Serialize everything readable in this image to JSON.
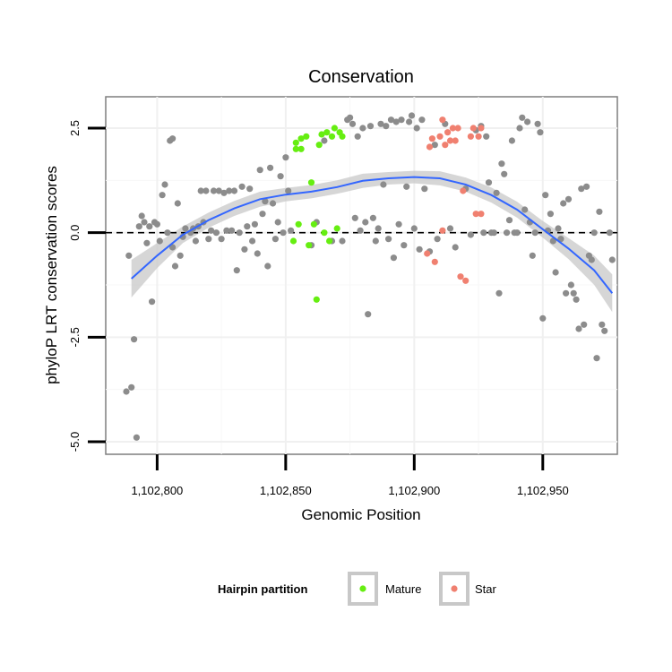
{
  "chart_data": {
    "type": "scatter",
    "title": "Conservation",
    "xlabel": "Genomic Position",
    "ylabel": "phyloP LRT conservation scores",
    "xlim": [
      1102780,
      1102979
    ],
    "ylim": [
      -5.3,
      3.25
    ],
    "x_ticks": [
      {
        "value": 1102800,
        "label": "1,102,800"
      },
      {
        "value": 1102850,
        "label": "1,102,850"
      },
      {
        "value": 1102900,
        "label": "1,102,900"
      },
      {
        "value": 1102950,
        "label": "1,102,950"
      }
    ],
    "y_ticks": [
      {
        "value": 2.5,
        "label": "2.5"
      },
      {
        "value": 0,
        "label": "0.0"
      },
      {
        "value": -2.5,
        "label": "-2.5"
      },
      {
        "value": -5,
        "label": "-5.0"
      }
    ],
    "grid": true,
    "reference_line": {
      "y": 0,
      "style": "dashed"
    },
    "legend": {
      "title": "Hairpin partition",
      "position": "bottom",
      "entries": [
        {
          "label": "Mature",
          "color": "#66ee11"
        },
        {
          "label": "Star",
          "color": "#f08070"
        }
      ]
    },
    "colors": {
      "other": "#8c8c8c",
      "smooth_line": "#3366ff",
      "band": "#c8c8c8"
    },
    "smooth": {
      "x": [
        1102790,
        1102800,
        1102810,
        1102820,
        1102830,
        1102840,
        1102850,
        1102860,
        1102870,
        1102880,
        1102890,
        1102900,
        1102910,
        1102920,
        1102930,
        1102940,
        1102950,
        1102960,
        1102970,
        1102977
      ],
      "y": [
        -1.1,
        -0.55,
        -0.05,
        0.3,
        0.58,
        0.8,
        0.91,
        0.98,
        1.09,
        1.24,
        1.3,
        1.33,
        1.3,
        1.15,
        0.9,
        0.55,
        0.08,
        -0.38,
        -0.9,
        -1.45
      ],
      "lower": [
        -1.55,
        -0.85,
        -0.25,
        0.12,
        0.4,
        0.62,
        0.75,
        0.82,
        0.93,
        1.07,
        1.15,
        1.18,
        1.13,
        0.98,
        0.72,
        0.36,
        -0.12,
        -0.63,
        -1.25,
        -1.9
      ],
      "upper": [
        -0.65,
        -0.25,
        0.15,
        0.48,
        0.76,
        0.98,
        1.07,
        1.14,
        1.25,
        1.41,
        1.45,
        1.48,
        1.47,
        1.32,
        1.08,
        0.74,
        0.28,
        -0.13,
        -0.55,
        -1.0
      ]
    },
    "series": [
      {
        "name": "Mature",
        "color": "#66ee11",
        "points": [
          [
            1102853,
            -0.2
          ],
          [
            1102854,
            2.0
          ],
          [
            1102854,
            2.15
          ],
          [
            1102855,
            0.2
          ],
          [
            1102856,
            2.25
          ],
          [
            1102856,
            2.0
          ],
          [
            1102858,
            2.3
          ],
          [
            1102859,
            -0.3
          ],
          [
            1102860,
            1.2
          ],
          [
            1102861,
            0.2
          ],
          [
            1102862,
            -1.6
          ],
          [
            1102863,
            2.1
          ],
          [
            1102864,
            2.35
          ],
          [
            1102865,
            0.0
          ],
          [
            1102866,
            2.4
          ],
          [
            1102867,
            -0.2
          ],
          [
            1102868,
            2.3
          ],
          [
            1102869,
            2.5
          ],
          [
            1102870,
            0.1
          ],
          [
            1102871,
            2.4
          ],
          [
            1102872,
            2.3
          ]
        ]
      },
      {
        "name": "Star",
        "color": "#f08070",
        "points": [
          [
            1102905,
            -0.5
          ],
          [
            1102906,
            2.05
          ],
          [
            1102907,
            2.25
          ],
          [
            1102908,
            -0.7
          ],
          [
            1102910,
            2.3
          ],
          [
            1102911,
            2.7
          ],
          [
            1102911,
            0.05
          ],
          [
            1102912,
            2.1
          ],
          [
            1102913,
            2.4
          ],
          [
            1102914,
            2.2
          ],
          [
            1102915,
            2.5
          ],
          [
            1102916,
            2.2
          ],
          [
            1102917,
            2.5
          ],
          [
            1102918,
            -1.05
          ],
          [
            1102919,
            1.0
          ],
          [
            1102920,
            -1.15
          ],
          [
            1102922,
            2.3
          ],
          [
            1102923,
            2.5
          ],
          [
            1102924,
            0.45
          ],
          [
            1102925,
            2.3
          ],
          [
            1102926,
            0.45
          ],
          [
            1102926,
            2.5
          ]
        ]
      },
      {
        "points": [
          [
            1102788,
            -3.8
          ],
          [
            1102789,
            -0.55
          ],
          [
            1102790,
            -3.7
          ],
          [
            1102791,
            -2.55
          ],
          [
            1102792,
            -4.9
          ],
          [
            1102793,
            0.15
          ],
          [
            1102794,
            0.4
          ],
          [
            1102795,
            0.25
          ],
          [
            1102796,
            -0.25
          ],
          [
            1102797,
            0.15
          ],
          [
            1102798,
            -1.65
          ],
          [
            1102799,
            0.25
          ],
          [
            1102800,
            0.2
          ],
          [
            1102801,
            -0.2
          ],
          [
            1102802,
            0.9
          ],
          [
            1102803,
            1.15
          ],
          [
            1102804,
            0.0
          ],
          [
            1102805,
            2.2
          ],
          [
            1102806,
            2.25
          ],
          [
            1102806,
            -0.35
          ],
          [
            1102807,
            -0.8
          ],
          [
            1102808,
            0.7
          ],
          [
            1102809,
            -0.55
          ],
          [
            1102810,
            -0.1
          ],
          [
            1102811,
            0.1
          ],
          [
            1102813,
            0.0
          ],
          [
            1102814,
            0.1
          ],
          [
            1102815,
            -0.2
          ],
          [
            1102816,
            0.15
          ],
          [
            1102817,
            1.0
          ],
          [
            1102818,
            0.25
          ],
          [
            1102819,
            1.0
          ],
          [
            1102820,
            -0.15
          ],
          [
            1102821,
            0.05
          ],
          [
            1102822,
            1.0
          ],
          [
            1102823,
            0.0
          ],
          [
            1102824,
            1.0
          ],
          [
            1102825,
            -0.15
          ],
          [
            1102826,
            0.95
          ],
          [
            1102827,
            0.05
          ],
          [
            1102828,
            1.0
          ],
          [
            1102829,
            0.05
          ],
          [
            1102830,
            1.0
          ],
          [
            1102831,
            -0.9
          ],
          [
            1102832,
            0.0
          ],
          [
            1102833,
            1.1
          ],
          [
            1102834,
            -0.4
          ],
          [
            1102835,
            0.15
          ],
          [
            1102836,
            1.05
          ],
          [
            1102837,
            -0.2
          ],
          [
            1102838,
            0.2
          ],
          [
            1102839,
            -0.5
          ],
          [
            1102840,
            1.5
          ],
          [
            1102841,
            0.45
          ],
          [
            1102842,
            0.75
          ],
          [
            1102843,
            -0.8
          ],
          [
            1102844,
            1.55
          ],
          [
            1102845,
            0.7
          ],
          [
            1102846,
            -0.15
          ],
          [
            1102847,
            0.25
          ],
          [
            1102848,
            1.35
          ],
          [
            1102849,
            0.0
          ],
          [
            1102850,
            1.8
          ],
          [
            1102851,
            1.0
          ],
          [
            1102852,
            0.05
          ],
          [
            1102860,
            -0.3
          ],
          [
            1102862,
            0.25
          ],
          [
            1102865,
            2.2
          ],
          [
            1102868,
            -0.2
          ],
          [
            1102872,
            -0.2
          ],
          [
            1102874,
            2.7
          ],
          [
            1102875,
            2.75
          ],
          [
            1102876,
            2.6
          ],
          [
            1102877,
            0.35
          ],
          [
            1102878,
            2.3
          ],
          [
            1102879,
            0.05
          ],
          [
            1102880,
            2.5
          ],
          [
            1102881,
            0.25
          ],
          [
            1102882,
            -1.95
          ],
          [
            1102883,
            2.55
          ],
          [
            1102884,
            0.35
          ],
          [
            1102885,
            -0.2
          ],
          [
            1102886,
            0.1
          ],
          [
            1102887,
            2.6
          ],
          [
            1102888,
            1.15
          ],
          [
            1102889,
            2.55
          ],
          [
            1102890,
            -0.15
          ],
          [
            1102891,
            2.7
          ],
          [
            1102892,
            -0.6
          ],
          [
            1102893,
            2.65
          ],
          [
            1102894,
            0.2
          ],
          [
            1102895,
            2.7
          ],
          [
            1102896,
            -0.3
          ],
          [
            1102897,
            1.1
          ],
          [
            1102898,
            2.65
          ],
          [
            1102899,
            2.8
          ],
          [
            1102900,
            0.1
          ],
          [
            1102901,
            2.5
          ],
          [
            1102902,
            -0.4
          ],
          [
            1102903,
            2.7
          ],
          [
            1102904,
            1.05
          ],
          [
            1102906,
            -0.45
          ],
          [
            1102908,
            2.1
          ],
          [
            1102909,
            -0.15
          ],
          [
            1102912,
            2.6
          ],
          [
            1102914,
            0.1
          ],
          [
            1102916,
            -0.35
          ],
          [
            1102920,
            1.05
          ],
          [
            1102922,
            -0.05
          ],
          [
            1102924,
            2.45
          ],
          [
            1102926,
            2.55
          ],
          [
            1102927,
            0.0
          ],
          [
            1102928,
            2.3
          ],
          [
            1102929,
            1.2
          ],
          [
            1102930,
            0.0
          ],
          [
            1102931,
            0.0
          ],
          [
            1102932,
            0.95
          ],
          [
            1102933,
            -1.45
          ],
          [
            1102934,
            1.65
          ],
          [
            1102935,
            1.4
          ],
          [
            1102936,
            0.0
          ],
          [
            1102937,
            0.3
          ],
          [
            1102938,
            2.2
          ],
          [
            1102939,
            0.0
          ],
          [
            1102940,
            0.0
          ],
          [
            1102941,
            2.5
          ],
          [
            1102942,
            2.75
          ],
          [
            1102943,
            0.55
          ],
          [
            1102944,
            2.65
          ],
          [
            1102945,
            0.25
          ],
          [
            1102946,
            -0.55
          ],
          [
            1102947,
            0.0
          ],
          [
            1102948,
            2.6
          ],
          [
            1102949,
            2.4
          ],
          [
            1102950,
            -2.05
          ],
          [
            1102951,
            0.9
          ],
          [
            1102952,
            0.05
          ],
          [
            1102953,
            0.45
          ],
          [
            1102954,
            -0.2
          ],
          [
            1102955,
            -0.95
          ],
          [
            1102956,
            0.1
          ],
          [
            1102957,
            -0.15
          ],
          [
            1102958,
            0.7
          ],
          [
            1102959,
            -1.45
          ],
          [
            1102960,
            0.8
          ],
          [
            1102961,
            -1.25
          ],
          [
            1102962,
            -1.45
          ],
          [
            1102963,
            -1.6
          ],
          [
            1102964,
            -2.3
          ],
          [
            1102965,
            1.05
          ],
          [
            1102966,
            -2.2
          ],
          [
            1102967,
            1.1
          ],
          [
            1102968,
            -0.55
          ],
          [
            1102969,
            -0.65
          ],
          [
            1102970,
            0.0
          ],
          [
            1102971,
            -3.0
          ],
          [
            1102972,
            0.5
          ],
          [
            1102973,
            -2.2
          ],
          [
            1102974,
            -2.35
          ],
          [
            1102976,
            0.0
          ],
          [
            1102977,
            -0.65
          ]
        ]
      }
    ]
  }
}
